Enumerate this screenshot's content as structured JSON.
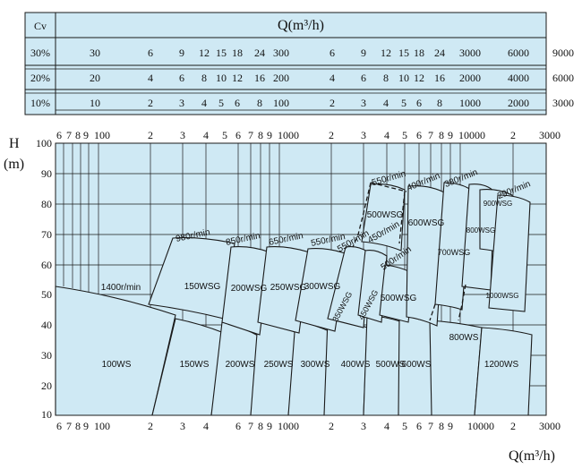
{
  "colors": {
    "fill": "#cfe9f4",
    "line": "#1a1a1a"
  },
  "top_table": {
    "cv_header": "Cv",
    "q_header": "Q(m³/h)",
    "rows": [
      {
        "label": "30%",
        "values": [
          "30",
          "6",
          "9",
          "12",
          "15",
          "18",
          "24",
          "300",
          "6",
          "9",
          "12",
          "15",
          "18",
          "24",
          "3000",
          "6000"
        ],
        "right": "9000"
      },
      {
        "label": "20%",
        "values": [
          "20",
          "4",
          "6",
          "8",
          "10",
          "12",
          "16",
          "200",
          "4",
          "6",
          "8",
          "10",
          "12",
          "16",
          "2000",
          "4000"
        ],
        "right": "6000"
      },
      {
        "label": "10%",
        "values": [
          "10",
          "2",
          "3",
          "4",
          "5",
          "6",
          "8",
          "100",
          "2",
          "3",
          "4",
          "5",
          "6",
          "8",
          "1000",
          "2000"
        ],
        "right": "3000"
      }
    ]
  },
  "chart": {
    "y_label_1": "H",
    "y_label_2": "(m)",
    "x_label": "Q(m³/h)",
    "y_ticks": [
      "100",
      "90",
      "80",
      "70",
      "60",
      "50",
      "40",
      "30",
      "20",
      "10"
    ],
    "top_ticks": [
      "6",
      "7",
      "8",
      "9",
      "100",
      "2",
      "3",
      "4",
      "5",
      "6",
      "7",
      "8",
      "9",
      "1000",
      "2",
      "3",
      "4",
      "5",
      "6",
      "7",
      "8",
      "9",
      "10000",
      "2",
      "3000"
    ],
    "bottom_ticks": [
      "6",
      "7",
      "8",
      "9",
      "100",
      "2",
      "3",
      "4",
      "6",
      "7",
      "8",
      "9",
      "1000",
      "2",
      "3",
      "4",
      "5",
      "6",
      "7",
      "8",
      "9",
      "10000",
      "2",
      "3000"
    ],
    "zones": [
      "100WS",
      "150WS",
      "200WS",
      "250WS",
      "300WS",
      "400WS",
      "500WS",
      "600WS",
      "800WS",
      "1200WS",
      "150WSG",
      "200WSG",
      "250WSG",
      "300WSG",
      "350WSG",
      "450WSG",
      "500WSG",
      "500WSG",
      "600WSG",
      "700WSG",
      "800WSG",
      "900WSG",
      "1000WSG"
    ],
    "speeds": [
      "1400r/min",
      "980r/min",
      "850r/min",
      "650r/min",
      "550r/min",
      "550r/min",
      "450r/min",
      "500r/min",
      "550r/min",
      "400r/min",
      "380r/min",
      "290r/min"
    ]
  }
}
